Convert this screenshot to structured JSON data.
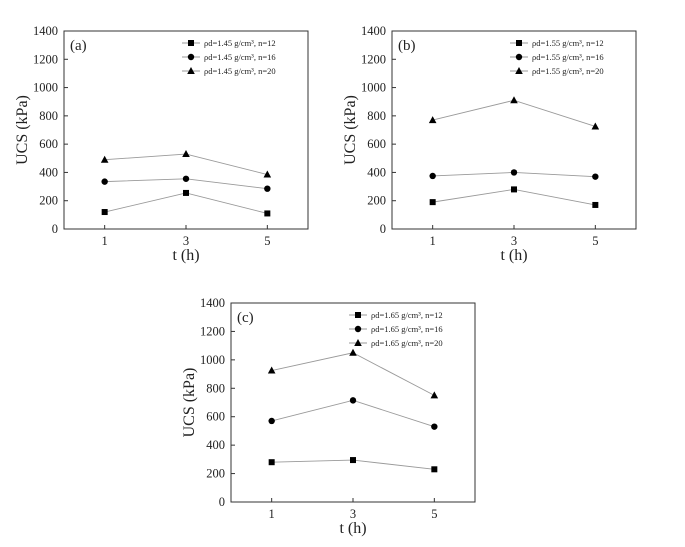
{
  "chart_data": [
    {
      "type": "line",
      "panel_label": "(a)",
      "xlabel": "t (h)",
      "ylabel": "UCS (kPa)",
      "x": [
        1,
        3,
        5
      ],
      "xticks": [
        "1",
        "3",
        "5"
      ],
      "xlim": [
        0,
        6
      ],
      "ylim": [
        0,
        1400
      ],
      "yticks": [
        "0",
        "200",
        "400",
        "600",
        "800",
        "1000",
        "1200",
        "1400"
      ],
      "legend_position": "top-right",
      "series": [
        {
          "name": "ρd=1.45 g/cm³, n=12",
          "marker": "square",
          "values": [
            120,
            255,
            110
          ]
        },
        {
          "name": "ρd=1.45 g/cm³, n=16",
          "marker": "circle",
          "values": [
            335,
            355,
            285
          ]
        },
        {
          "name": "ρd=1.45 g/cm³, n=20",
          "marker": "triangle",
          "values": [
            490,
            530,
            385
          ]
        }
      ]
    },
    {
      "type": "line",
      "panel_label": "(b)",
      "xlabel": "t (h)",
      "ylabel": "UCS (kPa)",
      "x": [
        1,
        3,
        5
      ],
      "xticks": [
        "1",
        "3",
        "5"
      ],
      "xlim": [
        0,
        6
      ],
      "ylim": [
        0,
        1400
      ],
      "yticks": [
        "0",
        "200",
        "400",
        "600",
        "800",
        "1000",
        "1200",
        "1400"
      ],
      "legend_position": "top-right",
      "series": [
        {
          "name": "ρd=1.55 g/cm³, n=12",
          "marker": "square",
          "values": [
            190,
            280,
            170
          ]
        },
        {
          "name": "ρd=1.55 g/cm³, n=16",
          "marker": "circle",
          "values": [
            375,
            400,
            370
          ]
        },
        {
          "name": "ρd=1.55 g/cm³, n=20",
          "marker": "triangle",
          "values": [
            770,
            910,
            725
          ]
        }
      ]
    },
    {
      "type": "line",
      "panel_label": "(c)",
      "xlabel": "t (h)",
      "ylabel": "UCS (kPa)",
      "x": [
        1,
        3,
        5
      ],
      "xticks": [
        "1",
        "3",
        "5"
      ],
      "xlim": [
        0,
        6
      ],
      "ylim": [
        0,
        1400
      ],
      "yticks": [
        "0",
        "200",
        "400",
        "600",
        "800",
        "1000",
        "1200",
        "1400"
      ],
      "legend_position": "top-right",
      "series": [
        {
          "name": "ρd=1.65 g/cm³, n=12",
          "marker": "square",
          "values": [
            280,
            295,
            230
          ]
        },
        {
          "name": "ρd=1.65 g/cm³, n=16",
          "marker": "circle",
          "values": [
            570,
            715,
            530
          ]
        },
        {
          "name": "ρd=1.65 g/cm³, n=20",
          "marker": "triangle",
          "values": [
            925,
            1050,
            750
          ]
        }
      ]
    }
  ]
}
